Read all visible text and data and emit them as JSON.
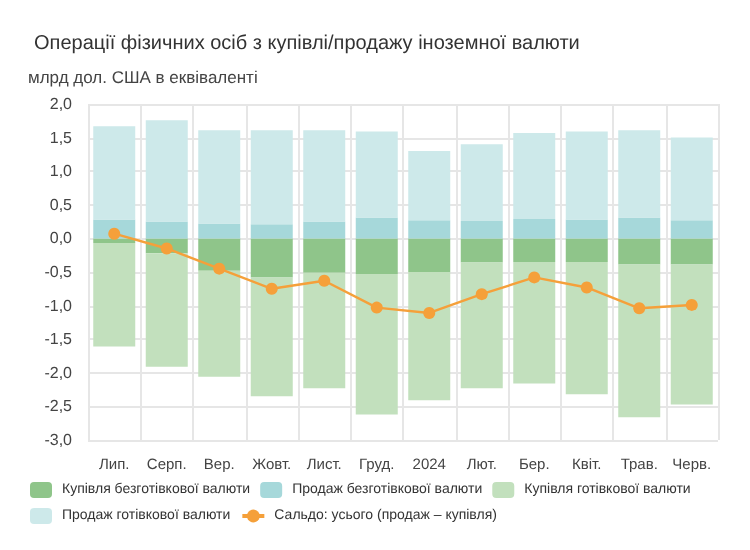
{
  "chart_data": {
    "type": "bar",
    "stacked": true,
    "title": "Операції фізичних осіб з купівлі/продажу іноземної валюти",
    "ylabel": "млрд дол. США в еквіваленті",
    "categories": [
      "Лип.",
      "Серп.",
      "Вер.",
      "Жовт.",
      "Лист.",
      "Груд.",
      "2024",
      "Лют.",
      "Бер.",
      "Квіт.",
      "Трав.",
      "Черв."
    ],
    "series": [
      {
        "name": "Купівля безготівкової валюти",
        "color": "#8fc58a",
        "values": [
          -0.07,
          -0.22,
          -0.48,
          -0.58,
          -0.51,
          -0.53,
          -0.5,
          -0.36,
          -0.35,
          -0.35,
          -0.39,
          -0.39
        ]
      },
      {
        "name": "Продаж безготівкової валюти",
        "color": "#a6d8da",
        "values": [
          0.28,
          0.25,
          0.22,
          0.21,
          0.25,
          0.31,
          0.27,
          0.26,
          0.29,
          0.28,
          0.31,
          0.27
        ]
      },
      {
        "name": "Купівля готівкової валюти",
        "color": "#c2e0bd",
        "values": [
          -1.54,
          -1.69,
          -1.58,
          -1.77,
          -1.72,
          -2.09,
          -1.91,
          -1.87,
          -1.81,
          -1.97,
          -2.27,
          -2.08
        ]
      },
      {
        "name": "Продаж готівкової валюти",
        "color": "#cde9ea",
        "values": [
          1.39,
          1.51,
          1.39,
          1.4,
          1.36,
          1.28,
          1.03,
          1.14,
          1.28,
          1.31,
          1.3,
          1.23
        ]
      },
      {
        "name": "Сальдо: усього (продаж – купівля)",
        "type": "line",
        "color": "#f5a03a",
        "values": [
          0.07,
          -0.15,
          -0.45,
          -0.75,
          -0.63,
          -1.03,
          -1.11,
          -0.83,
          -0.58,
          -0.73,
          -1.04,
          -0.99
        ]
      }
    ],
    "ylim": [
      -3,
      2
    ],
    "yticks": [
      {
        "value": -3,
        "label": "-3,0"
      },
      {
        "value": -2.5,
        "label": "-2,5"
      },
      {
        "value": -2,
        "label": "-2,0"
      },
      {
        "value": -1.5,
        "label": "-1,5"
      },
      {
        "value": -1,
        "label": "-1,0"
      },
      {
        "value": -0.5,
        "label": "-0,5"
      },
      {
        "value": 0,
        "label": "0,0"
      },
      {
        "value": 0.5,
        "label": "0,5"
      },
      {
        "value": 1,
        "label": "1,0"
      },
      {
        "value": 1.5,
        "label": "1,5"
      },
      {
        "value": 2,
        "label": "2,0"
      }
    ],
    "grid": true,
    "legend": "bottom",
    "marker": "circle",
    "line_style": "solid"
  }
}
